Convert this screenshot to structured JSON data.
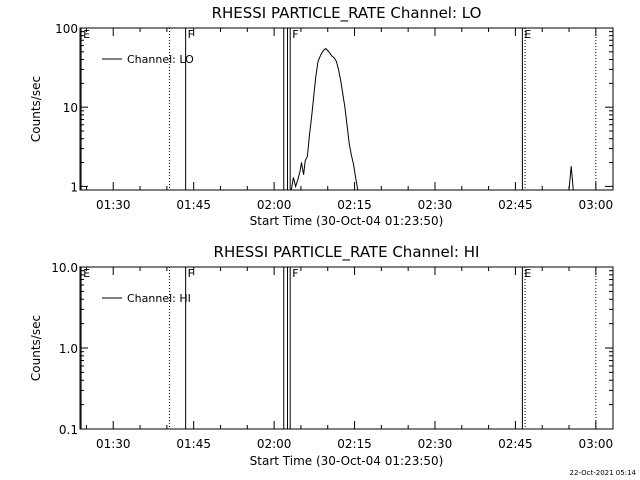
{
  "footer": {
    "timestamp": "22-Oct-2021 05:14"
  },
  "chart_data": [
    {
      "type": "line",
      "title": "RHESSI PARTICLE_RATE Channel: LO",
      "xlabel": "Start Time (30-Oct-04 01:23:50)",
      "ylabel": "Counts/sec",
      "yscale": "log",
      "ylim": [
        0.9,
        100
      ],
      "xlim_minutes": [
        83.8,
        183.2
      ],
      "x_tick_minutes": [
        90,
        105,
        120,
        135,
        150,
        165,
        180
      ],
      "x_tick_labels": [
        "01:30",
        "01:45",
        "02:00",
        "02:15",
        "02:30",
        "02:45",
        "03:00"
      ],
      "y_ticks": [
        1,
        10,
        100
      ],
      "y_tick_labels": [
        "1",
        "10",
        "100"
      ],
      "grid": false,
      "legend": {
        "position": "top-left",
        "entries": [
          "Channel: LO"
        ]
      },
      "flag_lines": [
        {
          "minute": 84.0,
          "style": "solid",
          "label": "E"
        },
        {
          "minute": 100.5,
          "style": "dotted",
          "label": ""
        },
        {
          "minute": 103.5,
          "style": "solid",
          "label": "F"
        },
        {
          "minute": 121.8,
          "style": "solid",
          "label": ""
        },
        {
          "minute": 122.5,
          "style": "solid",
          "label": ""
        },
        {
          "minute": 123.0,
          "style": "solid",
          "label": "F"
        },
        {
          "minute": 166.3,
          "style": "solid",
          "label": "E"
        },
        {
          "minute": 166.8,
          "style": "dotted",
          "label": ""
        },
        {
          "minute": 180.0,
          "style": "dotted",
          "label": ""
        }
      ],
      "series": [
        {
          "name": "Channel: LO",
          "segments": [
            [
              [
                123.2,
                0.9
              ],
              [
                123.6,
                1.3
              ],
              [
                124.0,
                1.0
              ],
              [
                124.4,
                1.2
              ],
              [
                124.8,
                1.5
              ],
              [
                125.1,
                2.0
              ],
              [
                125.5,
                1.4
              ],
              [
                125.8,
                2.1
              ],
              [
                126.2,
                2.4
              ],
              [
                126.6,
                4.5
              ],
              [
                127.0,
                7.5
              ],
              [
                127.4,
                14
              ],
              [
                127.8,
                25
              ],
              [
                128.2,
                38
              ],
              [
                128.7,
                46
              ],
              [
                129.2,
                52
              ],
              [
                129.6,
                55
              ],
              [
                130.0,
                52
              ],
              [
                130.4,
                48
              ],
              [
                130.8,
                44
              ],
              [
                131.2,
                42
              ],
              [
                131.6,
                38
              ],
              [
                132.0,
                30
              ],
              [
                132.4,
                22
              ],
              [
                132.8,
                15
              ],
              [
                133.2,
                10
              ],
              [
                133.6,
                6
              ],
              [
                134.0,
                3.5
              ],
              [
                134.4,
                2.5
              ],
              [
                134.8,
                1.9
              ],
              [
                135.2,
                1.3
              ],
              [
                135.6,
                0.9
              ]
            ],
            [
              [
                175.0,
                0.9
              ],
              [
                175.4,
                1.8
              ],
              [
                175.8,
                0.9
              ]
            ]
          ]
        }
      ]
    },
    {
      "type": "line",
      "title": "RHESSI PARTICLE_RATE Channel: HI",
      "xlabel": "Start Time (30-Oct-04 01:23:50)",
      "ylabel": "Counts/sec",
      "yscale": "log",
      "ylim": [
        0.1,
        10
      ],
      "xlim_minutes": [
        83.8,
        183.2
      ],
      "x_tick_minutes": [
        90,
        105,
        120,
        135,
        150,
        165,
        180
      ],
      "x_tick_labels": [
        "01:30",
        "01:45",
        "02:00",
        "02:15",
        "02:30",
        "02:45",
        "03:00"
      ],
      "y_ticks": [
        0.1,
        1,
        10
      ],
      "y_tick_labels": [
        "0.1",
        "1.0",
        "10.0"
      ],
      "grid": false,
      "legend": {
        "position": "top-left",
        "entries": [
          "Channel: HI"
        ]
      },
      "flag_lines": [
        {
          "minute": 84.0,
          "style": "solid",
          "label": "E"
        },
        {
          "minute": 100.5,
          "style": "dotted",
          "label": ""
        },
        {
          "minute": 103.5,
          "style": "solid",
          "label": "F"
        },
        {
          "minute": 121.8,
          "style": "solid",
          "label": ""
        },
        {
          "minute": 122.5,
          "style": "solid",
          "label": ""
        },
        {
          "minute": 123.0,
          "style": "solid",
          "label": "F"
        },
        {
          "minute": 166.3,
          "style": "solid",
          "label": "E"
        },
        {
          "minute": 166.8,
          "style": "dotted",
          "label": ""
        },
        {
          "minute": 180.0,
          "style": "dotted",
          "label": ""
        }
      ],
      "series": [
        {
          "name": "Channel: HI",
          "segments": []
        }
      ]
    }
  ]
}
